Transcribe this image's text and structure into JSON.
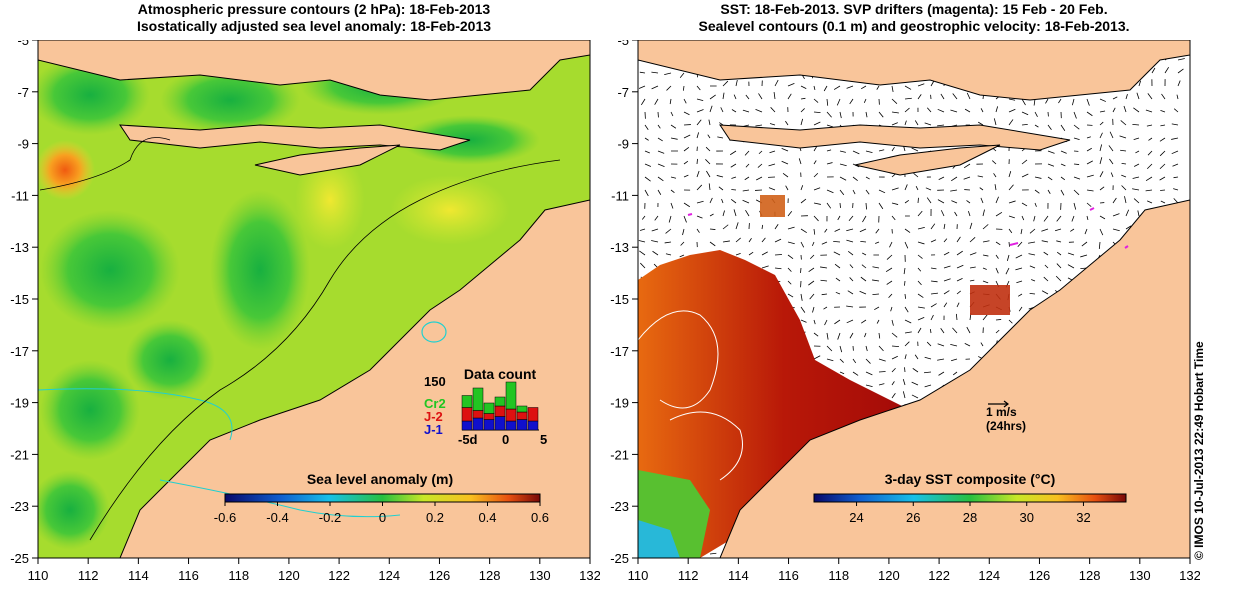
{
  "left_panel": {
    "title_line1": "Atmospheric pressure contours (2 hPa): 18-Feb-2013",
    "title_line2": "Isostatically adjusted sea level anomaly: 18-Feb-2013",
    "colorbar": {
      "label": "Sea level anomaly (m)",
      "ticks": [
        "-0.6",
        "-0.4",
        "-0.2",
        "0",
        "0.2",
        "0.4",
        "0.6"
      ],
      "range": [
        -0.6,
        0.6
      ]
    },
    "data_count": {
      "title": "Data count",
      "y_tick": "150",
      "x_ticks": [
        "-5d",
        "0",
        "5"
      ],
      "legend": [
        {
          "name": "Cr2",
          "color": "#22c522"
        },
        {
          "name": "J-2",
          "color": "#dd1111"
        },
        {
          "name": "J-1",
          "color": "#1010cc"
        }
      ],
      "bars": [
        {
          "j1": 30,
          "j2": 45,
          "cr2": 40
        },
        {
          "j1": 40,
          "j2": 25,
          "cr2": 75
        },
        {
          "j1": 35,
          "j2": 20,
          "cr2": 35
        },
        {
          "j1": 45,
          "j2": 35,
          "cr2": 30
        },
        {
          "j1": 30,
          "j2": 40,
          "cr2": 90
        },
        {
          "j1": 35,
          "j2": 25,
          "cr2": 20
        },
        {
          "j1": 30,
          "j2": 45,
          "cr2": 0
        }
      ]
    }
  },
  "right_panel": {
    "title_line1": "SST: 18-Feb-2013. SVP drifters (magenta): 15 Feb - 20 Feb.",
    "title_line2": "Sealevel contours (0.1 m) and geostrophic velocity: 18-Feb-2013.",
    "colorbar": {
      "label": "3-day SST composite (°C)",
      "ticks": [
        "24",
        "26",
        "28",
        "30",
        "32"
      ],
      "range": [
        22.5,
        33.5
      ]
    },
    "vector_scale_label": "1 m/s",
    "vector_scale_sublabel": "(24hrs)"
  },
  "axes": {
    "lon_ticks": [
      "110",
      "112",
      "114",
      "116",
      "118",
      "120",
      "122",
      "124",
      "126",
      "128",
      "130",
      "132"
    ],
    "lat_ticks": [
      "-5",
      "-7",
      "-9",
      "-11",
      "-13",
      "-15",
      "-17",
      "-19",
      "-21",
      "-23",
      "-25"
    ]
  },
  "credit": "© IMOS 10-Jul-2013 22:49 Hobart Time",
  "colors": {
    "land": "#f9c59a",
    "ocean_no_data": "#ffffff"
  }
}
